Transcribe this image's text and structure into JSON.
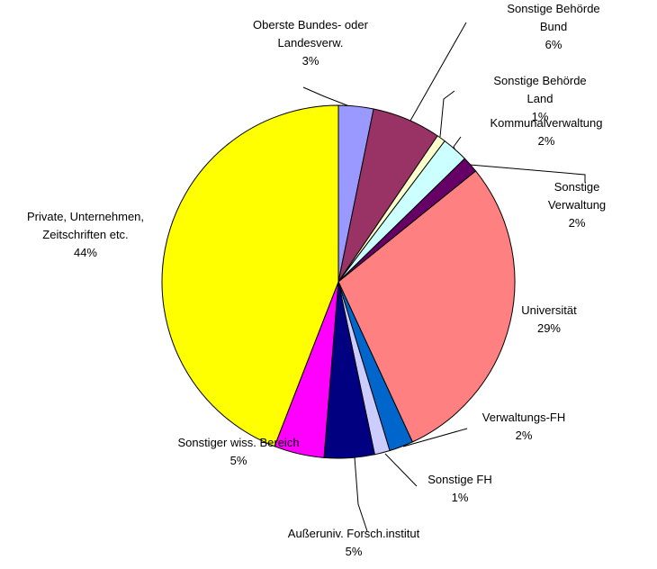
{
  "chart_data": {
    "type": "pie",
    "categories": [
      "Oberste Bundes- oder\nLandesverw.",
      "Sonstige Behörde Bund",
      "Sonstige Behörde Land",
      "Kommunalverwaltung",
      "Sonstige Verwaltung",
      "Universität",
      "Verwaltungs-FH",
      "Sonstige FH",
      "Außeruniv. Forsch.institut",
      "Sonstiger wiss. Bereich",
      "Private, Unternehmen,\nZeitschriften etc."
    ],
    "values": [
      3.2,
      6.3,
      0.8,
      2.4,
      1.5,
      28.9,
      2.2,
      1.4,
      4.6,
      4.6,
      44.1
    ],
    "value_labels": [
      "3%",
      "6%",
      "1%",
      "2%",
      "2%",
      "29%",
      "2%",
      "1%",
      "5%",
      "5%",
      "44%"
    ],
    "colors": [
      "#9999ff",
      "#993366",
      "#ffffcc",
      "#ccffff",
      "#660066",
      "#ff8080",
      "#0066cc",
      "#ccccff",
      "#000080",
      "#ff00ff",
      "#ffff00"
    ]
  }
}
